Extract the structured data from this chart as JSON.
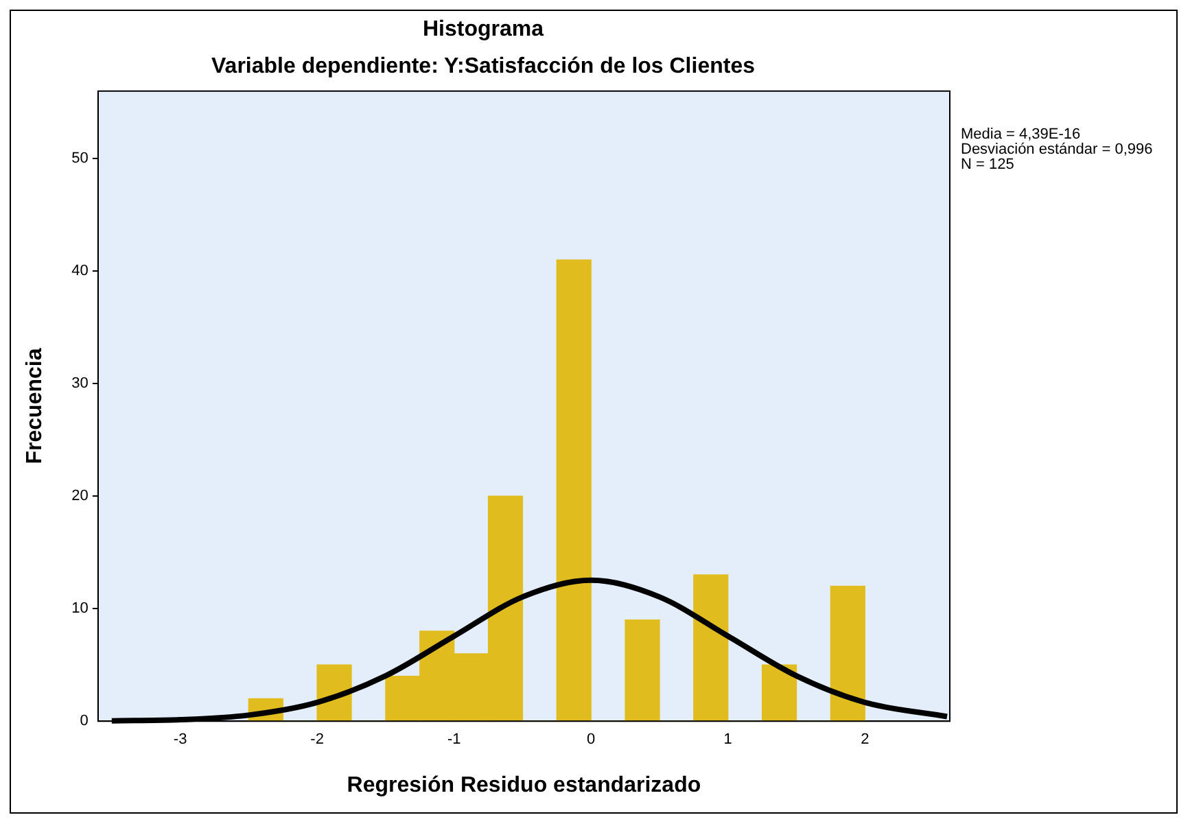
{
  "chart_data": {
    "type": "histogram",
    "title": "Histograma",
    "subtitle": "Variable dependiente: Y:Satisfacción de los Clientes",
    "xlabel": "Regresión Residuo estandarizado",
    "ylabel": "Frecuencia",
    "annotations": [
      "Media = 4,39E-16",
      "Desviación estándar = 0,996",
      "N = 125"
    ],
    "bins": [
      -2.5,
      -2.25,
      -2,
      -1.75,
      -1.5,
      -1.25,
      -1,
      -0.75,
      -0.5,
      -0.25,
      0,
      0.25,
      0.5,
      0.75,
      1,
      1.25,
      1.5,
      1.75,
      2
    ],
    "values": [
      2,
      0,
      5,
      0,
      4,
      8,
      6,
      20,
      0,
      41,
      0,
      9,
      0,
      13,
      0,
      5,
      0,
      12
    ],
    "color": "#e1bc1e",
    "series": [
      {
        "type": "line",
        "color": "#000000",
        "x": [
          -3.5,
          -3,
          -2.5,
          -2,
          -1.5,
          -1,
          -0.5,
          0,
          0.5,
          1,
          1.5,
          2,
          2.6
        ],
        "values": [
          0.03,
          0.13,
          0.54,
          1.67,
          4.03,
          7.56,
          11.04,
          12.52,
          11.04,
          7.56,
          4.03,
          1.67,
          0.41
        ]
      }
    ],
    "xlim": [
      -3.6,
      2.62
    ],
    "xticks": [
      -3,
      -2,
      -1,
      0,
      1,
      2
    ],
    "ylim": [
      0,
      56
    ],
    "yticks": [
      0,
      10,
      20,
      30,
      40,
      50
    ],
    "grid": false,
    "legend": false,
    "marker": "none",
    "line_style": "solid"
  }
}
